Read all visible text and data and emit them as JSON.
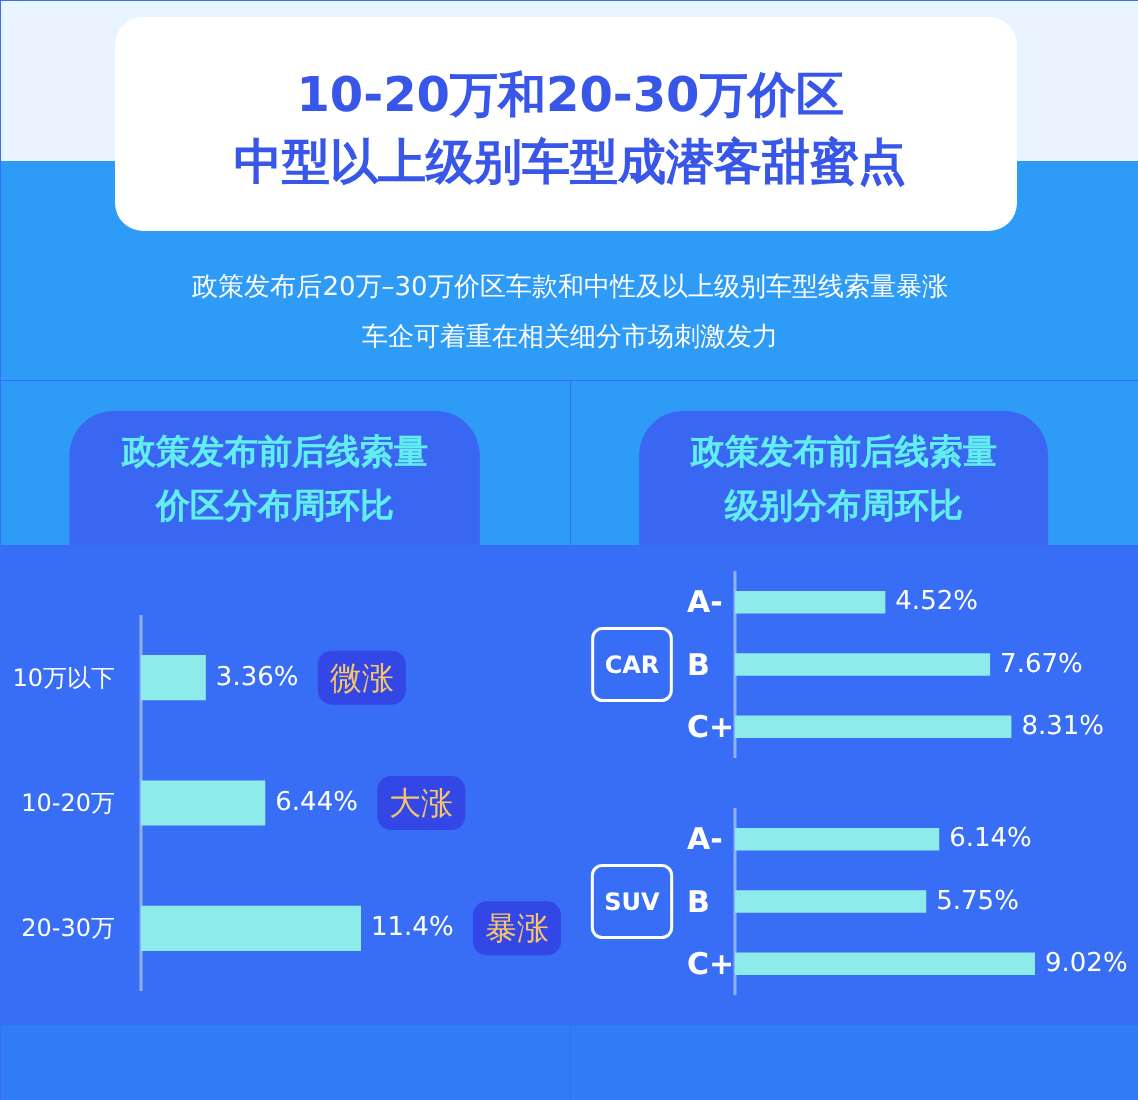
{
  "chart_data": [
    {
      "type": "other",
      "title": "10-20万和20-30万价区中型以上级别车型成潜客甜蜜点",
      "subtitle": "政策发布后20万–30万价区车款和中性及以上级别车型线索量暴涨车企可着重在相关细分市场刺激发力"
    },
    {
      "type": "bar",
      "orientation": "horizontal",
      "title": "政策发布前后线索量价区分布周环比",
      "categories": [
        "10万以下",
        "10-20万",
        "20-30万"
      ],
      "values": [
        3.36,
        6.44,
        11.4
      ],
      "value_labels": [
        "3.36%",
        "6.44%",
        "11.4%"
      ],
      "color": "#8debe9",
      "annotations": [
        "微涨",
        "大涨",
        "暴涨"
      ]
    },
    {
      "type": "bar",
      "orientation": "horizontal",
      "title": "政策发布前后线索量级别分布周环比",
      "ylabel": "CAR",
      "categories": [
        "A-",
        "B",
        "C+"
      ],
      "values": [
        4.52,
        7.67,
        8.31
      ],
      "value_labels": [
        "4.52%",
        "7.67%",
        "8.31%"
      ],
      "color": "#8debe9"
    },
    {
      "type": "bar",
      "orientation": "horizontal",
      "ylabel": "SUV",
      "categories": [
        "A-",
        "B",
        "C+"
      ],
      "values": [
        6.14,
        5.75,
        9.02
      ],
      "value_labels": [
        "6.14%",
        "5.75%",
        "9.02%"
      ],
      "color": "#8debe9"
    }
  ]
}
